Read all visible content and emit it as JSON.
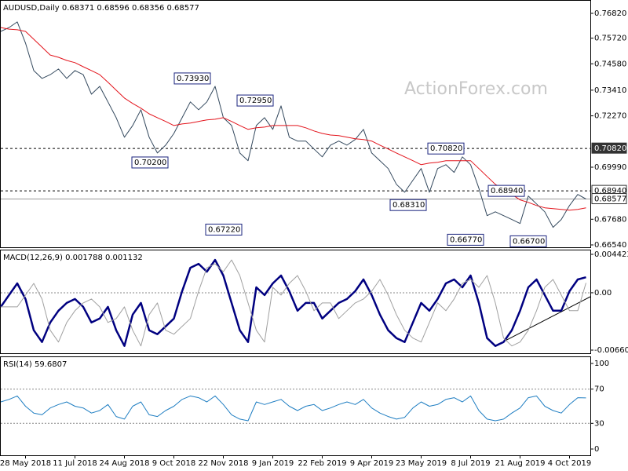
{
  "chart_data": [
    {
      "type": "line",
      "title": "AUDUSD,Daily  0.68371 0.68596 0.68356 0.68577",
      "watermark": "ActionForex.com",
      "categories": [
        null,
        null,
        null,
        "28 May 2018",
        null,
        null,
        null,
        null,
        null,
        "11 Jul 2018",
        null,
        null,
        null,
        null,
        null,
        "24 Aug 2018",
        null,
        null,
        null,
        null,
        null,
        "9 Oct 2018",
        null,
        null,
        null,
        null,
        null,
        "22 Nov 2018",
        null,
        null,
        null,
        null,
        null,
        "9 Jan 2019",
        null,
        null,
        null,
        null,
        null,
        "22 Feb 2019",
        null,
        null,
        null,
        null,
        null,
        "9 Apr 2019",
        null,
        null,
        null,
        null,
        null,
        "23 May 2019",
        null,
        null,
        null,
        null,
        null,
        "8 Jul 2019",
        null,
        null,
        null,
        null,
        null,
        "21 Aug 2019",
        null,
        null,
        null,
        null,
        null,
        "4 Oct 2019",
        null,
        null
      ],
      "series": [
        {
          "color": "#34495e",
          "values": [
            0.7602,
            0.7619,
            0.7644,
            0.755,
            0.7428,
            0.7393,
            0.741,
            0.7435,
            0.7393,
            0.7428,
            0.741,
            0.7323,
            0.7358,
            0.7289,
            0.7219,
            0.7132,
            0.7184,
            0.7254,
            0.7132,
            0.7062,
            0.7097,
            0.7149,
            0.7219,
            0.7289,
            0.7254,
            0.7289,
            0.7358,
            0.7219,
            0.7184,
            0.7062,
            0.7028,
            0.7184,
            0.7219,
            0.7167,
            0.7271,
            0.7132,
            0.7115,
            0.7115,
            0.708,
            0.7045,
            0.7097,
            0.7115,
            0.7097,
            0.7122,
            0.7167,
            0.7062,
            0.7028,
            0.6993,
            0.6923,
            0.6888,
            0.6941,
            0.6993,
            0.6888,
            0.6993,
            0.701,
            0.6976,
            0.7045,
            0.701,
            0.6906,
            0.6784,
            0.6801,
            0.6784,
            0.6767,
            0.6749,
            0.6871,
            0.6836,
            0.6801,
            0.6732,
            0.6767,
            0.6829,
            0.6878,
            0.68577
          ]
        },
        {
          "color": "#e3141c",
          "values": [
            0.7619,
            0.7612,
            0.7609,
            0.7602,
            0.7567,
            0.7532,
            0.7497,
            0.7487,
            0.7473,
            0.7463,
            0.7445,
            0.7428,
            0.741,
            0.7376,
            0.7341,
            0.7306,
            0.7282,
            0.7261,
            0.7236,
            0.7219,
            0.7202,
            0.7184,
            0.7191,
            0.7195,
            0.7202,
            0.7209,
            0.7212,
            0.7219,
            0.7202,
            0.7184,
            0.7167,
            0.7174,
            0.7177,
            0.7184,
            0.7184,
            0.7184,
            0.7184,
            0.7174,
            0.716,
            0.7149,
            0.7142,
            0.7139,
            0.7132,
            0.7125,
            0.7122,
            0.7115,
            0.7097,
            0.708,
            0.7062,
            0.7045,
            0.7028,
            0.701,
            0.7017,
            0.7021,
            0.7028,
            0.7028,
            0.7028,
            0.7028,
            0.6993,
            0.6958,
            0.6923,
            0.6899,
            0.6878,
            0.6854,
            0.6843,
            0.6829,
            0.6819,
            0.6815,
            0.6812,
            0.6808,
            0.6812,
            0.6819
          ]
        }
      ],
      "ylim": [
        0.6654,
        0.7682
      ],
      "yticks": [
        {
          "value": 0.7682,
          "label": "0.76820"
        },
        {
          "value": 0.7572,
          "label": "0.75720"
        },
        {
          "value": 0.7458,
          "label": "0.74580"
        },
        {
          "value": 0.7341,
          "label": "0.73410"
        },
        {
          "value": 0.7227,
          "label": "0.72270"
        },
        {
          "value": 0.6999,
          "label": "0.69990"
        },
        {
          "value": 0.6768,
          "label": "0.67680"
        },
        {
          "value": 0.6654,
          "label": "0.66540"
        }
      ],
      "grid": false,
      "hlines": [
        {
          "value": 0.7082,
          "label": "0.70820",
          "style": "dashed",
          "box": "dark"
        },
        {
          "value": 0.6894,
          "label": "0.68940",
          "style": "dashed",
          "box": "light"
        },
        {
          "value": 0.68577,
          "label": "0.68577",
          "style": "solid",
          "box": "light"
        }
      ],
      "annotations": [
        {
          "value": 0.7393,
          "label": "0.73930"
        },
        {
          "value": 0.7295,
          "label": "0.72950"
        },
        {
          "value": 0.702,
          "label": "0.70200"
        },
        {
          "value": 0.6722,
          "label": "0.67220"
        },
        {
          "value": 0.7082,
          "label": "0.70820"
        },
        {
          "value": 0.6894,
          "label": "0.68940"
        },
        {
          "value": 0.6831,
          "label": "0.68310"
        },
        {
          "value": 0.6677,
          "label": "0.66770"
        },
        {
          "value": 0.667,
          "label": "0.66700"
        }
      ]
    },
    {
      "type": "line",
      "title": "MACD(12,26,9) 0.001788 0.001132",
      "series": [
        {
          "color": "#000080",
          "values": [
            -0.00162,
            -0.00027,
            0.00108,
            -0.00072,
            -0.00432,
            -0.00567,
            -0.00342,
            -0.00207,
            -0.00117,
            -0.00072,
            -0.00162,
            -0.00342,
            -0.00297,
            -0.00162,
            -0.00432,
            -0.00612,
            -0.00252,
            -0.00117,
            -0.00432,
            -0.00477,
            -0.00387,
            -0.00297,
            0.00018,
            0.00288,
            0.00333,
            0.00243,
            0.00378,
            0.00198,
            -0.00117,
            -0.00432,
            -0.00567,
            0.00063,
            -0.00027,
            0.00108,
            0.00198,
            0.00018,
            -0.00207,
            -0.00117,
            -0.00117,
            -0.00297,
            -0.00207,
            -0.00117,
            -0.00072,
            0.00018,
            0.00153,
            -0.00027,
            -0.00252,
            -0.00432,
            -0.00522,
            -0.00567,
            -0.00342,
            -0.00117,
            -0.00207,
            -0.00072,
            0.00108,
            0.00153,
            0.00063,
            0.00198,
            -0.00117,
            -0.00522,
            -0.00612,
            -0.00567,
            -0.00432,
            -0.00207,
            0.00063,
            0.00153,
            -0.00027,
            -0.00207,
            -0.00207,
            0.00018,
            0.00153,
            0.001788
          ]
        },
        {
          "color": "#a0a0a0",
          "values": [
            -0.00162,
            -0.00162,
            -0.00162,
            -0.00027,
            0.00108,
            -0.00072,
            -0.00432,
            -0.00567,
            -0.00342,
            -0.00207,
            -0.00117,
            -0.00072,
            -0.00162,
            -0.00342,
            -0.00297,
            -0.00162,
            -0.00432,
            -0.00612,
            -0.00252,
            -0.00117,
            -0.00432,
            -0.00477,
            -0.00387,
            -0.00297,
            0.00018,
            0.00288,
            0.00333,
            0.00243,
            0.00378,
            0.00198,
            -0.00117,
            -0.00432,
            -0.00567,
            0.00063,
            -0.00027,
            0.00108,
            0.00198,
            0.00018,
            -0.00207,
            -0.00117,
            -0.00117,
            -0.00297,
            -0.00207,
            -0.00117,
            -0.00072,
            0.00018,
            0.00153,
            -0.00027,
            -0.00252,
            -0.00432,
            -0.00522,
            -0.00567,
            -0.00342,
            -0.00117,
            -0.00207,
            -0.00072,
            0.00108,
            0.00153,
            0.00063,
            0.00198,
            -0.00117,
            -0.00522,
            -0.00612,
            -0.00567,
            -0.00432,
            -0.00207,
            0.00063,
            0.00153,
            -0.00027,
            -0.00207,
            -0.00207,
            0.001132
          ]
        }
      ],
      "ylim": [
        -0.006603,
        0.004423
      ],
      "yticks": [
        0.004423,
        {
          "value": 0,
          "label": "0.00"
        },
        -0.006603
      ],
      "grid": true
    },
    {
      "type": "line",
      "title": "RSI(14) 59.6807",
      "series": [
        {
          "color": "#1f7ec2",
          "values": [
            55,
            58,
            62,
            50,
            42,
            40,
            48,
            52,
            55,
            50,
            48,
            42,
            45,
            52,
            38,
            35,
            50,
            55,
            40,
            38,
            45,
            50,
            58,
            62,
            60,
            55,
            62,
            52,
            40,
            35,
            33,
            55,
            52,
            55,
            58,
            50,
            45,
            50,
            52,
            45,
            48,
            52,
            55,
            52,
            58,
            48,
            42,
            38,
            35,
            37,
            48,
            55,
            50,
            52,
            58,
            60,
            55,
            62,
            45,
            35,
            33,
            35,
            42,
            48,
            60,
            62,
            50,
            45,
            42,
            52,
            60,
            59.6807
          ]
        }
      ],
      "ylim": [
        0,
        100
      ],
      "yticks": [
        100,
        70,
        30,
        0
      ],
      "grid": true
    }
  ]
}
